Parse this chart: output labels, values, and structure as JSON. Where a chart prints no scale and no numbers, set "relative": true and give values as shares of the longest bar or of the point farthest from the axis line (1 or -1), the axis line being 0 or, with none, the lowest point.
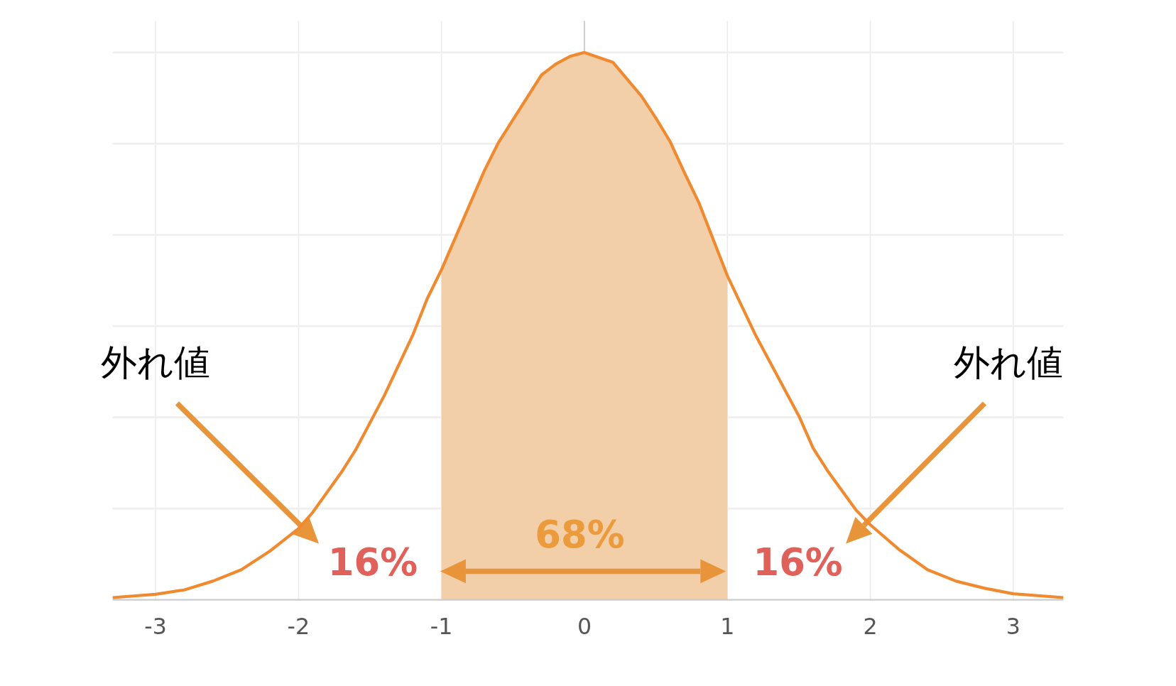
{
  "chart_data": {
    "type": "line",
    "relative": true,
    "xlim": [
      -3.3,
      3.35
    ],
    "xticks": [
      -3,
      -2,
      -1,
      0,
      1,
      2,
      3
    ],
    "grid": true,
    "series": [
      {
        "type": "area",
        "color": "#f2cfa8",
        "x": [
          -1,
          -0.7,
          -0.6,
          -0.5,
          -0.3,
          -0.2,
          -0.1,
          0,
          0.2,
          0.4,
          0.5,
          0.6,
          0.7,
          0.8,
          1
        ],
        "values": [
          0.603,
          0.784,
          0.836,
          0.877,
          0.959,
          0.979,
          0.993,
          1,
          0.982,
          0.92,
          0.88,
          0.837,
          0.78,
          0.726,
          0.592
        ]
      },
      {
        "color": "#f08a30",
        "x": [
          -3.3,
          -3,
          -2.8,
          -2.6,
          -2.4,
          -2.2,
          -2,
          -1.9,
          -1.7,
          -1.6,
          -1.4,
          -1.2,
          -1.1,
          -1,
          -0.7,
          -0.6,
          -0.5,
          -0.3,
          -0.2,
          -0.1,
          0,
          0.2,
          0.4,
          0.5,
          0.6,
          0.7,
          0.8,
          1,
          1.2,
          1.5,
          1.6,
          1.7,
          1.9,
          2,
          2.2,
          2.4,
          2.6,
          2.8,
          3,
          3.35
        ],
        "values": [
          0.004,
          0.01,
          0.018,
          0.034,
          0.055,
          0.089,
          0.13,
          0.16,
          0.233,
          0.274,
          0.373,
          0.484,
          0.55,
          0.603,
          0.784,
          0.836,
          0.877,
          0.959,
          0.979,
          0.993,
          1,
          0.982,
          0.92,
          0.88,
          0.837,
          0.78,
          0.726,
          0.592,
          0.482,
          0.336,
          0.277,
          0.236,
          0.164,
          0.137,
          0.092,
          0.055,
          0.034,
          0.021,
          0.011,
          0.004
        ]
      }
    ],
    "annotations": [
      "外れ値",
      "外れ値",
      "16%",
      "16%",
      "68%"
    ]
  }
}
